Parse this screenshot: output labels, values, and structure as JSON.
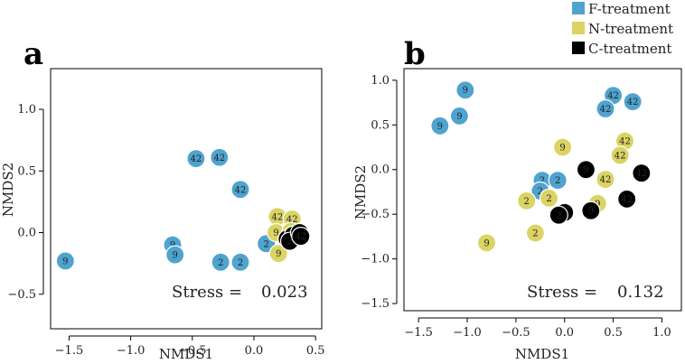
{
  "legend": [
    {
      "label": "F-treatment",
      "color": "#4fa3cf"
    },
    {
      "label": "N-treatment",
      "color": "#dbd464"
    },
    {
      "label": "C-treatment",
      "color": "#000000"
    }
  ],
  "chart_data": [
    {
      "type": "scatter",
      "panel_label": "a",
      "xlabel": "NMDS1",
      "ylabel": "NMDS2",
      "xlim": [
        -1.65,
        0.55
      ],
      "ylim": [
        -0.78,
        1.33
      ],
      "xticks": [
        -1.5,
        -1.0,
        -0.5,
        0.0,
        0.5
      ],
      "xtick_labels": [
        "−1.5",
        "−1.0",
        "−0.5",
        "0.0",
        "0.5"
      ],
      "yticks": [
        -0.5,
        0.0,
        0.5,
        1.0
      ],
      "ytick_labels": [
        "−0.5",
        "0.0",
        "0.5",
        "1.0"
      ],
      "stress_label": "Stress =",
      "stress_value": "0.023",
      "series": [
        {
          "name": "F-treatment",
          "color": "#4fa3cf",
          "points": [
            {
              "x": -1.53,
              "y": -0.23,
              "label": "9"
            },
            {
              "x": -0.66,
              "y": -0.1,
              "label": "9"
            },
            {
              "x": -0.64,
              "y": -0.18,
              "label": "9"
            },
            {
              "x": -0.47,
              "y": 0.6,
              "label": "42"
            },
            {
              "x": -0.28,
              "y": 0.61,
              "label": "42"
            },
            {
              "x": -0.11,
              "y": 0.35,
              "label": "42"
            },
            {
              "x": -0.27,
              "y": -0.24,
              "label": "2"
            },
            {
              "x": -0.11,
              "y": -0.24,
              "label": "2"
            },
            {
              "x": 0.1,
              "y": -0.09,
              "label": "2"
            }
          ]
        },
        {
          "name": "N-treatment",
          "color": "#dbd464",
          "points": [
            {
              "x": 0.19,
              "y": 0.13,
              "label": "42"
            },
            {
              "x": 0.31,
              "y": 0.11,
              "label": "42"
            },
            {
              "x": 0.18,
              "y": 0.0,
              "label": "9"
            },
            {
              "x": 0.2,
              "y": -0.17,
              "label": "9"
            },
            {
              "x": 0.28,
              "y": -0.05,
              "label": "2"
            },
            {
              "x": 0.3,
              "y": 0.01,
              "label": "2"
            }
          ]
        },
        {
          "name": "C-treatment",
          "color": "#000000",
          "points": [
            {
              "x": 0.27,
              "y": -0.05,
              "label": "9"
            },
            {
              "x": 0.32,
              "y": -0.02,
              "label": "42"
            },
            {
              "x": 0.29,
              "y": -0.07,
              "label": "2"
            },
            {
              "x": 0.37,
              "y": 0.0,
              "label": "42"
            },
            {
              "x": 0.38,
              "y": -0.03,
              "label": "42"
            }
          ]
        }
      ]
    },
    {
      "type": "scatter",
      "panel_label": "b",
      "xlabel": "NMDS1",
      "ylabel": "NMDS2",
      "xlim": [
        -1.65,
        1.2
      ],
      "ylim": [
        -1.58,
        1.13
      ],
      "xticks": [
        -1.5,
        -1.0,
        -0.5,
        0.0,
        0.5,
        1.0
      ],
      "xtick_labels": [
        "−1.5",
        "−1.0",
        "−0.5",
        "0.0",
        "0.5",
        "1.0"
      ],
      "yticks": [
        -1.5,
        -1.0,
        -0.5,
        0.0,
        0.5,
        1.0
      ],
      "ytick_labels": [
        "−1.5",
        "−1.0",
        "−0.5",
        "0.0",
        "0.5",
        "1.0"
      ],
      "stress_label": "Stress =",
      "stress_value": "0.132",
      "series": [
        {
          "name": "F-treatment",
          "color": "#4fa3cf",
          "points": [
            {
              "x": -1.02,
              "y": 0.89,
              "label": "9"
            },
            {
              "x": -1.08,
              "y": 0.6,
              "label": "9"
            },
            {
              "x": -1.28,
              "y": 0.49,
              "label": "9"
            },
            {
              "x": 0.5,
              "y": 0.83,
              "label": "42"
            },
            {
              "x": 0.7,
              "y": 0.76,
              "label": "42"
            },
            {
              "x": 0.42,
              "y": 0.68,
              "label": "42"
            },
            {
              "x": -0.23,
              "y": -0.12,
              "label": "2"
            },
            {
              "x": -0.07,
              "y": -0.12,
              "label": "2"
            },
            {
              "x": -0.25,
              "y": -0.24,
              "label": "2"
            }
          ]
        },
        {
          "name": "N-treatment",
          "color": "#dbd464",
          "points": [
            {
              "x": -0.02,
              "y": 0.25,
              "label": "9"
            },
            {
              "x": 0.62,
              "y": 0.32,
              "label": "42"
            },
            {
              "x": 0.57,
              "y": 0.16,
              "label": "42"
            },
            {
              "x": 0.42,
              "y": -0.11,
              "label": "42"
            },
            {
              "x": -0.39,
              "y": -0.35,
              "label": "2"
            },
            {
              "x": -0.16,
              "y": -0.32,
              "label": "2"
            },
            {
              "x": -0.8,
              "y": -0.82,
              "label": "9"
            },
            {
              "x": -0.3,
              "y": -0.71,
              "label": "2"
            },
            {
              "x": 0.34,
              "y": -0.38,
              "label": "9"
            }
          ]
        },
        {
          "name": "C-treatment",
          "color": "#000000",
          "points": [
            {
              "x": 0.22,
              "y": 0.0,
              "label": "9"
            },
            {
              "x": 0.79,
              "y": -0.04,
              "label": "42"
            },
            {
              "x": 0.64,
              "y": -0.33,
              "label": "42"
            },
            {
              "x": 0.0,
              "y": -0.48,
              "label": "2"
            },
            {
              "x": -0.06,
              "y": -0.51,
              "label": "2"
            },
            {
              "x": 0.27,
              "y": -0.46,
              "label": "9"
            }
          ]
        }
      ]
    }
  ]
}
